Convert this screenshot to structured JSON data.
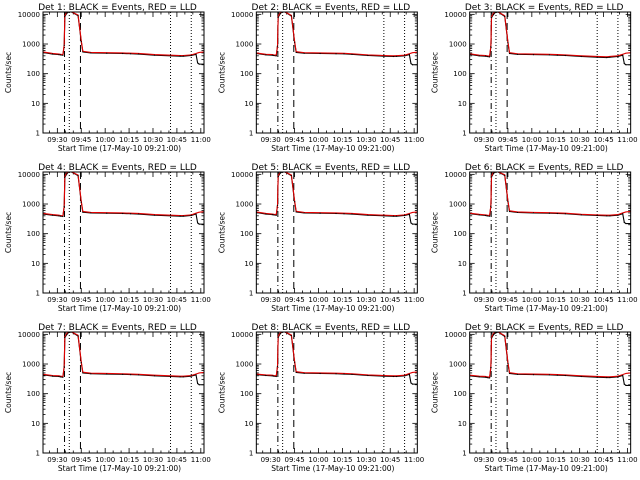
{
  "chart_data": {
    "type": "line",
    "layout": "3x3 grid",
    "title_template": "Det {det}: BLACK = Events, RED = LLD",
    "xlabel": "Start Time (17-May-10 09:21:00)",
    "ylabel": "Counts/sec",
    "x_unit": "minutes since 09:21",
    "xlim": [
      0,
      101
    ],
    "x_ticks": [
      {
        "label": "09:30",
        "value": 9
      },
      {
        "label": "09:45",
        "value": 24
      },
      {
        "label": "10:00",
        "value": 39
      },
      {
        "label": "10:15",
        "value": 54
      },
      {
        "label": "10:30",
        "value": 69
      },
      {
        "label": "10:45",
        "value": 84
      },
      {
        "label": "11:00",
        "value": 99
      }
    ],
    "y_scale": "log",
    "ylim": [
      1,
      12000
    ],
    "y_ticks": [
      {
        "label": "1",
        "value": 1
      },
      {
        "label": "10",
        "value": 10
      },
      {
        "label": "100",
        "value": 100
      },
      {
        "label": "1000",
        "value": 1000
      },
      {
        "label": "10000",
        "value": 10000
      }
    ],
    "vlines": [
      {
        "x": 13.5,
        "style": "dash-dot"
      },
      {
        "x": 16.5,
        "style": "dotted"
      },
      {
        "x": 23.5,
        "style": "dashed"
      },
      {
        "x": 80,
        "style": "dotted"
      },
      {
        "x": 93,
        "style": "dotted"
      }
    ],
    "series_names": {
      "events": "BLACK = Events",
      "lld": "RED = LLD"
    },
    "colors": {
      "events": "#000000",
      "lld": "#e00000",
      "axes": "#000000",
      "background": "#ffffff"
    },
    "panels": [
      {
        "det": "1",
        "events": {
          "x": [
            0,
            6,
            10,
            11,
            12.5,
            13.3,
            13.7,
            15,
            16,
            18,
            22,
            24,
            25,
            30,
            40,
            50,
            55,
            60,
            70,
            80,
            86,
            88,
            93,
            96,
            97,
            98,
            101
          ],
          "y": [
            520,
            460,
            440,
            430,
            420,
            900,
            8500,
            11000,
            12000,
            12000,
            9000,
            1200,
            540,
            500,
            490,
            480,
            470,
            460,
            420,
            400,
            390,
            390,
            410,
            450,
            230,
            210,
            210
          ]
        },
        "lld": {
          "x": [
            0,
            6,
            10,
            11,
            12.5,
            13.3,
            13.7,
            15,
            16,
            18,
            22,
            24,
            25,
            30,
            40,
            50,
            55,
            60,
            70,
            80,
            86,
            88,
            93,
            96,
            97,
            98,
            101
          ],
          "y": [
            540,
            480,
            460,
            450,
            440,
            950,
            9000,
            12000,
            12000,
            12000,
            9500,
            1300,
            570,
            520,
            510,
            500,
            490,
            480,
            440,
            420,
            410,
            410,
            430,
            480,
            500,
            520,
            540
          ]
        }
      },
      {
        "det": "2",
        "events": {
          "x": [
            0,
            6,
            10,
            11,
            12.5,
            13.3,
            13.7,
            15,
            16,
            18,
            22,
            24,
            25,
            30,
            40,
            50,
            55,
            60,
            70,
            80,
            86,
            88,
            93,
            96,
            97,
            98,
            101
          ],
          "y": [
            480,
            430,
            420,
            410,
            400,
            850,
            8000,
            10500,
            12000,
            12000,
            8800,
            1150,
            520,
            490,
            480,
            470,
            465,
            450,
            410,
            390,
            380,
            385,
            400,
            440,
            220,
            200,
            200
          ]
        },
        "lld": {
          "x": [
            0,
            6,
            10,
            11,
            12.5,
            13.3,
            13.7,
            15,
            16,
            18,
            22,
            24,
            25,
            30,
            40,
            50,
            55,
            60,
            70,
            80,
            86,
            88,
            93,
            96,
            97,
            98,
            101
          ],
          "y": [
            500,
            450,
            440,
            430,
            420,
            900,
            8600,
            11500,
            12000,
            12000,
            9200,
            1250,
            550,
            510,
            500,
            490,
            485,
            470,
            430,
            410,
            400,
            405,
            420,
            470,
            490,
            510,
            530
          ]
        }
      },
      {
        "det": "3",
        "events": {
          "x": [
            0,
            6,
            10,
            11,
            12.5,
            13.3,
            13.7,
            15,
            16,
            18,
            22,
            24,
            25,
            30,
            40,
            50,
            55,
            60,
            70,
            80,
            86,
            88,
            93,
            96,
            97,
            98,
            101
          ],
          "y": [
            450,
            400,
            390,
            380,
            370,
            800,
            7800,
            10000,
            11500,
            12000,
            8500,
            1100,
            480,
            450,
            440,
            430,
            420,
            410,
            380,
            360,
            350,
            360,
            380,
            420,
            220,
            200,
            200
          ]
        },
        "lld": {
          "x": [
            0,
            6,
            10,
            11,
            12.5,
            13.3,
            13.7,
            15,
            16,
            18,
            22,
            24,
            25,
            30,
            40,
            50,
            55,
            60,
            70,
            80,
            86,
            88,
            93,
            96,
            97,
            98,
            101
          ],
          "y": [
            470,
            420,
            410,
            400,
            390,
            850,
            8300,
            11000,
            12000,
            12000,
            9000,
            1200,
            510,
            470,
            460,
            450,
            440,
            430,
            400,
            380,
            370,
            380,
            400,
            450,
            470,
            490,
            510
          ]
        }
      },
      {
        "det": "4",
        "events": {
          "x": [
            0,
            6,
            10,
            11,
            12.5,
            13.3,
            13.7,
            15,
            16,
            18,
            22,
            24,
            25,
            30,
            40,
            50,
            55,
            60,
            70,
            80,
            86,
            88,
            93,
            96,
            97,
            98,
            101
          ],
          "y": [
            460,
            420,
            400,
            390,
            380,
            820,
            8000,
            10500,
            12000,
            12000,
            9000,
            1150,
            530,
            500,
            490,
            480,
            470,
            460,
            420,
            400,
            390,
            390,
            410,
            460,
            230,
            210,
            210
          ]
        },
        "lld": {
          "x": [
            0,
            6,
            10,
            11,
            12.5,
            13.3,
            13.7,
            15,
            16,
            18,
            22,
            24,
            25,
            30,
            40,
            50,
            55,
            60,
            70,
            80,
            86,
            88,
            93,
            96,
            97,
            98,
            101
          ],
          "y": [
            480,
            440,
            420,
            410,
            400,
            870,
            8500,
            11500,
            12000,
            12000,
            9500,
            1250,
            560,
            520,
            510,
            500,
            490,
            480,
            440,
            420,
            410,
            410,
            430,
            490,
            510,
            530,
            550
          ]
        }
      },
      {
        "det": "5",
        "events": {
          "x": [
            0,
            6,
            10,
            11,
            12.5,
            13.3,
            13.7,
            15,
            16,
            18,
            22,
            24,
            25,
            30,
            40,
            50,
            55,
            60,
            70,
            80,
            86,
            88,
            93,
            96,
            97,
            98,
            101
          ],
          "y": [
            520,
            460,
            440,
            430,
            420,
            900,
            8500,
            11000,
            12000,
            12000,
            9000,
            1200,
            540,
            500,
            490,
            480,
            470,
            460,
            420,
            400,
            390,
            390,
            410,
            450,
            230,
            210,
            210
          ]
        },
        "lld": {
          "x": [
            0,
            6,
            10,
            11,
            12.5,
            13.3,
            13.7,
            15,
            16,
            18,
            22,
            24,
            25,
            30,
            40,
            50,
            55,
            60,
            70,
            80,
            86,
            88,
            93,
            96,
            97,
            98,
            101
          ],
          "y": [
            540,
            480,
            460,
            450,
            440,
            950,
            9000,
            12000,
            12000,
            12000,
            9500,
            1300,
            570,
            520,
            510,
            500,
            490,
            480,
            440,
            420,
            410,
            410,
            430,
            480,
            500,
            520,
            540
          ]
        }
      },
      {
        "det": "6",
        "events": {
          "x": [
            0,
            6,
            10,
            11,
            12.5,
            13.3,
            13.7,
            15,
            16,
            18,
            22,
            24,
            25,
            30,
            40,
            50,
            55,
            60,
            70,
            80,
            86,
            88,
            93,
            96,
            97,
            98,
            101
          ],
          "y": [
            470,
            430,
            410,
            400,
            390,
            840,
            8200,
            10800,
            12000,
            12000,
            9200,
            1200,
            560,
            520,
            500,
            490,
            480,
            470,
            430,
            410,
            400,
            400,
            420,
            470,
            240,
            220,
            220
          ]
        },
        "lld": {
          "x": [
            0,
            6,
            10,
            11,
            12.5,
            13.3,
            13.7,
            15,
            16,
            18,
            22,
            24,
            25,
            30,
            40,
            50,
            55,
            60,
            70,
            80,
            86,
            88,
            93,
            96,
            97,
            98,
            101
          ],
          "y": [
            490,
            450,
            430,
            420,
            410,
            890,
            8700,
            11800,
            12000,
            12000,
            9700,
            1300,
            590,
            540,
            520,
            510,
            500,
            490,
            450,
            430,
            420,
            420,
            440,
            500,
            520,
            540,
            560
          ]
        }
      },
      {
        "det": "7",
        "events": {
          "x": [
            0,
            6,
            10,
            11,
            12.5,
            13.3,
            13.7,
            15,
            16,
            18,
            22,
            24,
            25,
            30,
            40,
            50,
            55,
            60,
            70,
            80,
            86,
            88,
            93,
            96,
            97,
            98,
            101
          ],
          "y": [
            430,
            390,
            380,
            370,
            360,
            800,
            7800,
            10000,
            11500,
            12000,
            8800,
            1100,
            500,
            470,
            460,
            450,
            440,
            430,
            400,
            380,
            370,
            370,
            390,
            430,
            220,
            200,
            200
          ]
        },
        "lld": {
          "x": [
            0,
            6,
            10,
            11,
            12.5,
            13.3,
            13.7,
            15,
            16,
            18,
            22,
            24,
            25,
            30,
            40,
            50,
            55,
            60,
            70,
            80,
            86,
            88,
            93,
            96,
            97,
            98,
            101
          ],
          "y": [
            450,
            410,
            400,
            390,
            380,
            850,
            8300,
            11000,
            12000,
            12000,
            9300,
            1200,
            530,
            490,
            480,
            470,
            460,
            450,
            420,
            400,
            390,
            390,
            410,
            460,
            480,
            500,
            520
          ]
        }
      },
      {
        "det": "8",
        "events": {
          "x": [
            0,
            6,
            10,
            11,
            12.5,
            13.3,
            13.7,
            15,
            16,
            18,
            22,
            24,
            25,
            30,
            40,
            50,
            55,
            60,
            70,
            80,
            86,
            88,
            93,
            96,
            97,
            98,
            101
          ],
          "y": [
            440,
            410,
            400,
            390,
            380,
            830,
            8000,
            10500,
            12000,
            12000,
            9000,
            1150,
            520,
            490,
            480,
            470,
            460,
            450,
            410,
            390,
            380,
            380,
            400,
            450,
            230,
            210,
            210
          ]
        },
        "lld": {
          "x": [
            0,
            6,
            10,
            11,
            12.5,
            13.3,
            13.7,
            15,
            16,
            18,
            22,
            24,
            25,
            30,
            40,
            50,
            55,
            60,
            70,
            80,
            86,
            88,
            93,
            96,
            97,
            98,
            101
          ],
          "y": [
            460,
            430,
            420,
            410,
            400,
            880,
            8500,
            11500,
            12000,
            12000,
            9500,
            1250,
            550,
            510,
            500,
            490,
            480,
            470,
            430,
            410,
            400,
            400,
            420,
            480,
            500,
            520,
            540
          ]
        }
      },
      {
        "det": "9",
        "events": {
          "x": [
            0,
            6,
            10,
            11,
            12.5,
            13.3,
            13.7,
            15,
            16,
            18,
            22,
            24,
            25,
            30,
            40,
            50,
            55,
            60,
            70,
            80,
            86,
            88,
            93,
            96,
            97,
            98,
            101
          ],
          "y": [
            400,
            370,
            360,
            350,
            340,
            760,
            7500,
            9800,
            11000,
            12000,
            8500,
            1050,
            480,
            450,
            440,
            430,
            420,
            410,
            380,
            360,
            350,
            350,
            370,
            410,
            210,
            190,
            190
          ]
        },
        "lld": {
          "x": [
            0,
            6,
            10,
            11,
            12.5,
            13.3,
            13.7,
            15,
            16,
            18,
            22,
            24,
            25,
            30,
            40,
            50,
            55,
            60,
            70,
            80,
            86,
            88,
            93,
            96,
            97,
            98,
            101
          ],
          "y": [
            420,
            390,
            380,
            370,
            360,
            810,
            8000,
            10800,
            12000,
            12000,
            9000,
            1150,
            510,
            470,
            460,
            450,
            440,
            430,
            400,
            380,
            370,
            370,
            390,
            440,
            460,
            480,
            500
          ]
        }
      }
    ]
  }
}
